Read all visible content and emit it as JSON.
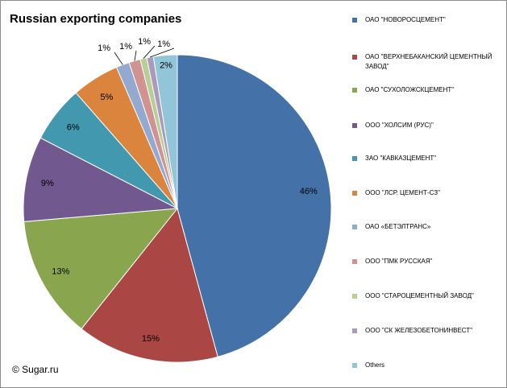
{
  "chart_data": {
    "type": "pie",
    "title": "Russian exporting companies",
    "categories": [
      "ОАО \"НОВОРОСЦЕМЕНТ\"",
      "ОАО \"ВЕРХНЕБАКАНСКИЙ ЦЕМЕНТНЫЙ ЗАВОД\"",
      "ОАО \"СУХОЛОЖСКЦЕМЕНТ\"",
      "ООО \"ХОЛСИМ (РУС)\"",
      "ЗАО \"КАВКАЗЦЕМЕНТ\"",
      "ООО \"ЛСР. ЦЕМЕНТ-СЗ\"",
      "ОАО «БЕТЭЛТРАНС»",
      "ООО \"ПМК РУССКАЯ\"",
      "ООО \"СТАРОЦЕМЕНТНЫЙ ЗАВОД\"",
      "ООО \"СК ЖЕЛЕЗОБЕТОНИНВЕСТ\"",
      "Others"
    ],
    "values": [
      46,
      15,
      13,
      9,
      6,
      5,
      1.4,
      1.2,
      0.7,
      0.7,
      2.5
    ],
    "labels": [
      "46%",
      "15%",
      "13%",
      "9%",
      "6%",
      "5%",
      "1%",
      "1%",
      "1%",
      "1%",
      "2%"
    ],
    "colors": [
      "#4472a8",
      "#aa4643",
      "#89a54e",
      "#71588f",
      "#4198af",
      "#db843d",
      "#93a9cf",
      "#d19392",
      "#b9cd96",
      "#a99bbd",
      "#92c5d8"
    ],
    "legend_position": "right",
    "start_angle_deg": 0,
    "direction": "clockwise"
  },
  "credit": "© Sugar.ru"
}
